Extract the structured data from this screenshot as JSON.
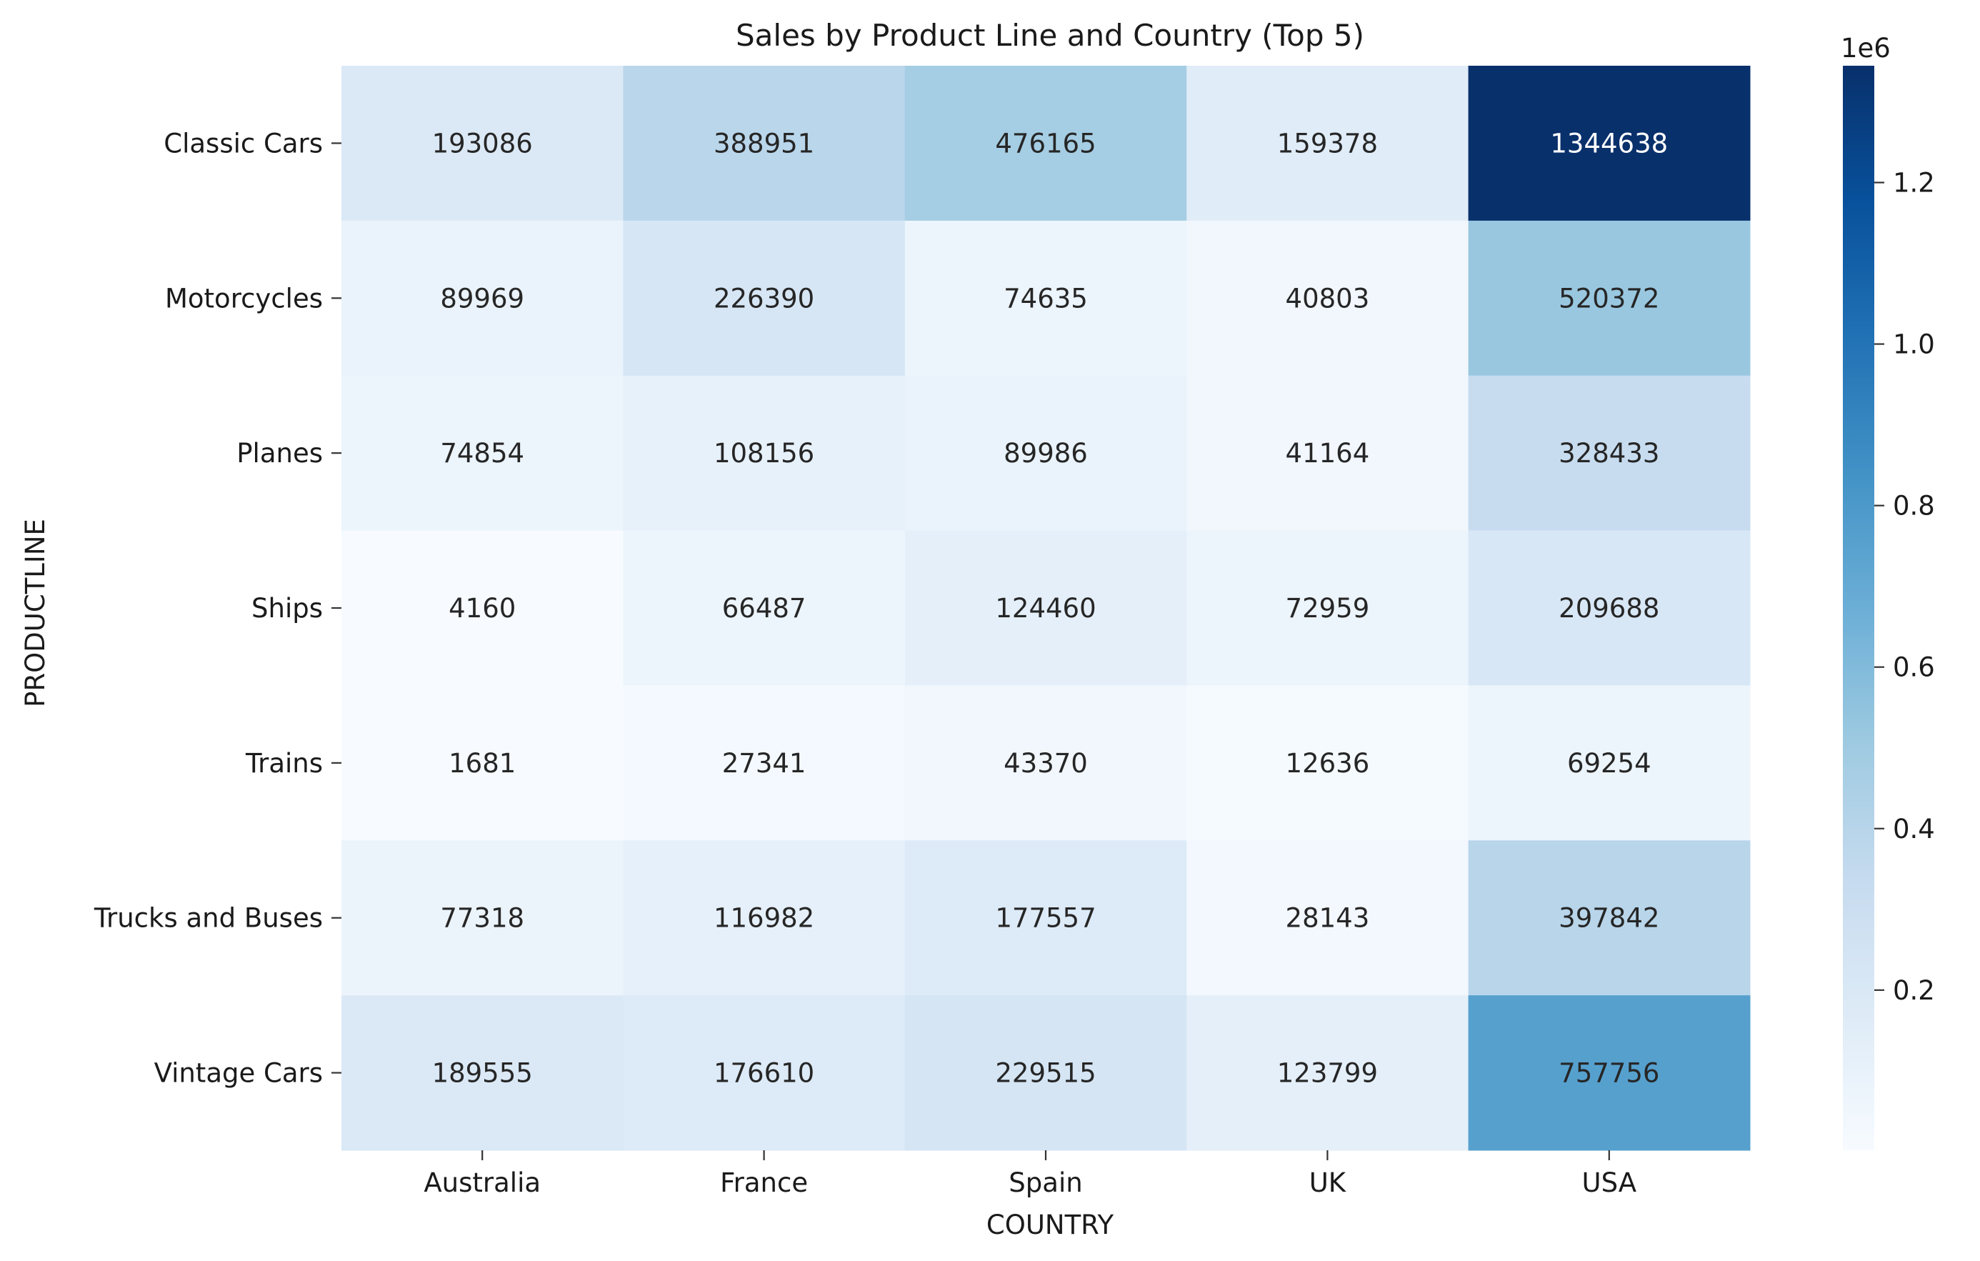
{
  "chart_data": {
    "type": "heatmap",
    "title": "Sales by Product Line and Country (Top 5)",
    "xlabel": "COUNTRY",
    "ylabel": "PRODUCTLINE",
    "x_categories": [
      "Australia",
      "France",
      "Spain",
      "UK",
      "USA"
    ],
    "y_categories": [
      "Classic Cars",
      "Motorcycles",
      "Planes",
      "Ships",
      "Trains",
      "Trucks and Buses",
      "Vintage Cars"
    ],
    "values": [
      [
        193086,
        388951,
        476165,
        159378,
        1344638
      ],
      [
        89969,
        226390,
        74635,
        40803,
        520372
      ],
      [
        74854,
        108156,
        89986,
        41164,
        328433
      ],
      [
        4160,
        66487,
        124460,
        72959,
        209688
      ],
      [
        1681,
        27341,
        43370,
        12636,
        69254
      ],
      [
        77318,
        116982,
        177557,
        28143,
        397842
      ],
      [
        189555,
        176610,
        229515,
        123799,
        757756
      ]
    ],
    "colormap": "Blues",
    "colorbar": {
      "min": 1681,
      "max": 1344638,
      "ticks": [
        0.2,
        0.4,
        0.6,
        0.8,
        1.0,
        1.2
      ],
      "tick_labels": [
        "0.2",
        "0.4",
        "0.6",
        "0.8",
        "1.0",
        "1.2"
      ],
      "offset_label": "1e6",
      "scale": 1000000
    }
  }
}
